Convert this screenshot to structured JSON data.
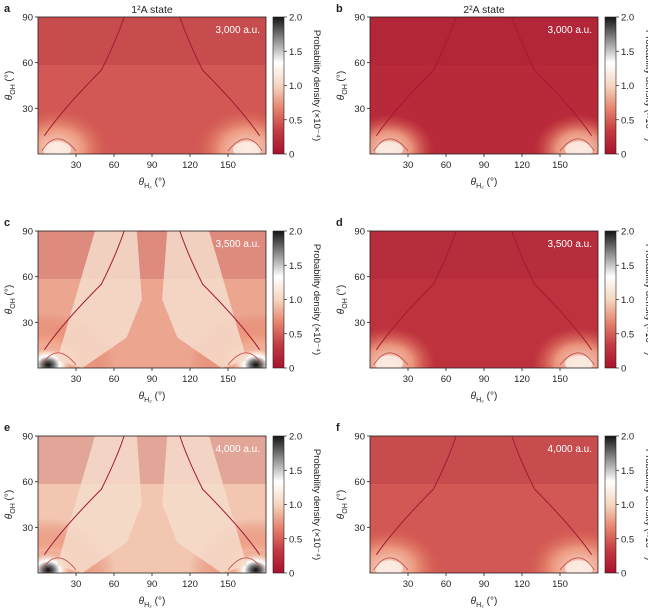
{
  "colorbar": {
    "label": "Probability density (×10⁻⁴)",
    "ticks": [
      "0",
      "0.5",
      "1.0",
      "1.5",
      "2.0"
    ],
    "tick_values": [
      0,
      0.5,
      1.0,
      1.5,
      2.0
    ],
    "colors": [
      "#a8112e",
      "#c33a42",
      "#e6846e",
      "#f5d6c0",
      "#ffffff",
      "#8e8e8e",
      "#151515"
    ]
  },
  "chart_data": [
    {
      "panel_letter": "a",
      "type": "heatmap",
      "title": "1²A state",
      "annotation": "3,000 a.u.",
      "xlabel": "θ_H₂ (°)",
      "ylabel": "θ_OH (°)",
      "xlim": [
        0,
        180
      ],
      "ylim": [
        0,
        90
      ],
      "xticks": [
        "30",
        "60",
        "90",
        "120",
        "150"
      ],
      "yticks": [
        "30",
        "60",
        "90"
      ],
      "background_level": 0.35,
      "hotspots": [
        {
          "x": 15,
          "y": 3,
          "peak": 1.3
        },
        {
          "x": 165,
          "y": 3,
          "peak": 1.3
        }
      ]
    },
    {
      "panel_letter": "b",
      "type": "heatmap",
      "title": "2²A state",
      "annotation": "3,000 a.u.",
      "xlabel": "θ_H₂ (°)",
      "ylabel": "θ_OH (°)",
      "xlim": [
        0,
        180
      ],
      "ylim": [
        0,
        90
      ],
      "xticks": [
        "30",
        "60",
        "90",
        "120",
        "150"
      ],
      "yticks": [
        "30",
        "60",
        "90"
      ],
      "background_level": 0.15,
      "hotspots": [
        {
          "x": 15,
          "y": 3,
          "peak": 0.9
        },
        {
          "x": 165,
          "y": 3,
          "peak": 0.9
        }
      ]
    },
    {
      "panel_letter": "c",
      "type": "heatmap",
      "title": "",
      "annotation": "3,500 a.u.",
      "xlabel": "θ_H₂ (°)",
      "ylabel": "θ_OH (°)",
      "xlim": [
        0,
        180
      ],
      "ylim": [
        0,
        90
      ],
      "xticks": [
        "30",
        "60",
        "90",
        "120",
        "150"
      ],
      "yticks": [
        "30",
        "60",
        "90"
      ],
      "background_level": 0.6,
      "hotspots": [
        {
          "x": 8,
          "y": 2,
          "peak": 2.0
        },
        {
          "x": 172,
          "y": 2,
          "peak": 2.0
        }
      ]
    },
    {
      "panel_letter": "d",
      "type": "heatmap",
      "title": "",
      "annotation": "3,500 a.u.",
      "xlabel": "θ_H₂ (°)",
      "ylabel": "θ_OH (°)",
      "xlim": [
        0,
        180
      ],
      "ylim": [
        0,
        90
      ],
      "xticks": [
        "30",
        "60",
        "90",
        "120",
        "150"
      ],
      "yticks": [
        "30",
        "60",
        "90"
      ],
      "background_level": 0.2,
      "hotspots": [
        {
          "x": 15,
          "y": 3,
          "peak": 1.0
        },
        {
          "x": 165,
          "y": 3,
          "peak": 1.0
        }
      ]
    },
    {
      "panel_letter": "e",
      "type": "heatmap",
      "title": "",
      "annotation": "4,000 a.u.",
      "xlabel": "θ_H₂ (°)",
      "ylabel": "θ_OH (°)",
      "xlim": [
        0,
        180
      ],
      "ylim": [
        0,
        90
      ],
      "xticks": [
        "30",
        "60",
        "90",
        "120",
        "150"
      ],
      "yticks": [
        "30",
        "60",
        "90"
      ],
      "background_level": 0.7,
      "hotspots": [
        {
          "x": 8,
          "y": 2,
          "peak": 2.0
        },
        {
          "x": 172,
          "y": 2,
          "peak": 2.0
        }
      ]
    },
    {
      "panel_letter": "f",
      "type": "heatmap",
      "title": "",
      "annotation": "4,000 a.u.",
      "xlabel": "θ_H₂ (°)",
      "ylabel": "θ_OH (°)",
      "xlim": [
        0,
        180
      ],
      "ylim": [
        0,
        90
      ],
      "xticks": [
        "30",
        "60",
        "90",
        "120",
        "150"
      ],
      "yticks": [
        "30",
        "60",
        "90"
      ],
      "background_level": 0.35,
      "hotspots": [
        {
          "x": 15,
          "y": 3,
          "peak": 1.3
        },
        {
          "x": 165,
          "y": 3,
          "peak": 1.3
        }
      ]
    }
  ]
}
